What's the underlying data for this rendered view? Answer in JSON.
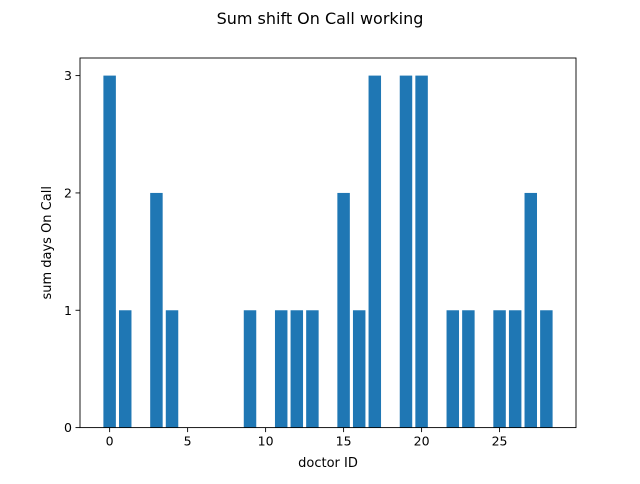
{
  "chart_data": {
    "type": "bar",
    "title": "Sum shift On Call working",
    "xlabel": "doctor ID",
    "ylabel": "sum days On Call",
    "x": [
      0,
      1,
      3,
      4,
      9,
      11,
      12,
      13,
      15,
      16,
      17,
      19,
      20,
      22,
      23,
      25,
      26,
      27,
      28
    ],
    "values": [
      3,
      1,
      2,
      1,
      1,
      1,
      1,
      1,
      2,
      1,
      3,
      3,
      3,
      1,
      1,
      1,
      1,
      2,
      1
    ],
    "xlim": [
      -1.9,
      29.9
    ],
    "ylim": [
      0,
      3.15
    ],
    "xticks": [
      0,
      5,
      10,
      15,
      20,
      25
    ],
    "yticks": [
      0,
      1,
      2,
      3
    ],
    "bar_width": 0.8,
    "bar_color": "#1f77b4",
    "grid": false,
    "legend": "none"
  }
}
